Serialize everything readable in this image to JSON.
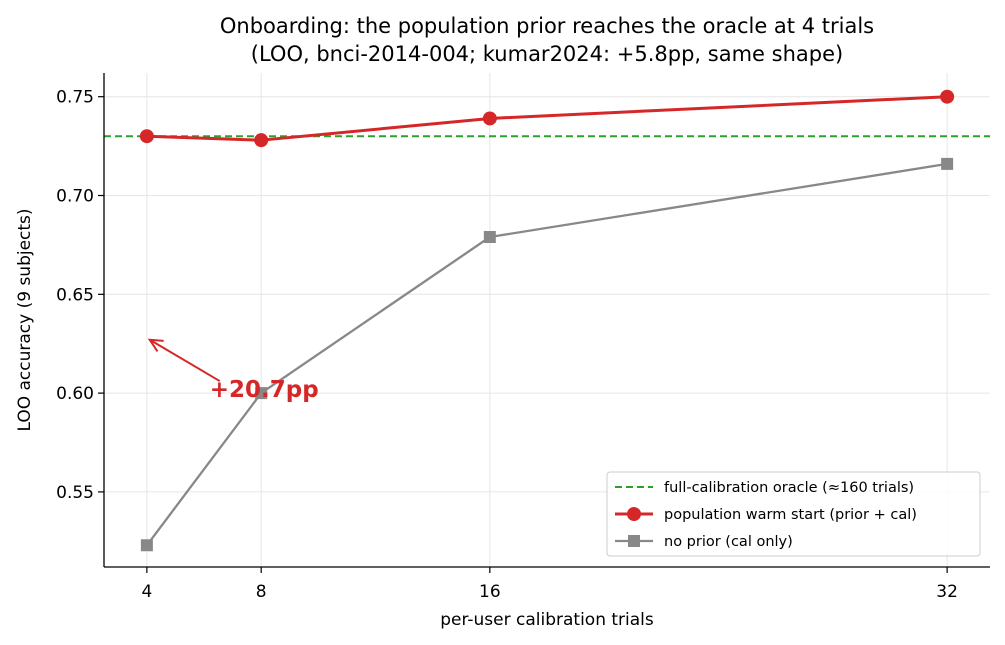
{
  "chart_data": {
    "type": "line",
    "title": "Onboarding: the population prior reaches the oracle at 4 trials",
    "subtitle": "(LOO, bnci-2014-004; kumar2024: +5.8pp, same shape)",
    "xlabel": "per-user calibration trials",
    "ylabel": "LOO accuracy (9 subjects)",
    "x": [
      4,
      8,
      16,
      32
    ],
    "x_tick_labels": [
      "4",
      "8",
      "16",
      "32"
    ],
    "y_ticks": [
      0.55,
      0.6,
      0.65,
      0.7,
      0.75
    ],
    "y_tick_labels": [
      "0.55",
      "0.60",
      "0.65",
      "0.70",
      "0.75"
    ],
    "xlim": [
      2.5,
      33.5
    ],
    "ylim": [
      0.512,
      0.762
    ],
    "grid": true,
    "legend_position": "lower right",
    "series": [
      {
        "name": "population warm start (prior + cal)",
        "values": [
          0.73,
          0.728,
          0.739,
          0.75
        ],
        "color": "#d62728",
        "marker": "circle",
        "style": "solid"
      },
      {
        "name": "no prior (cal only)",
        "values": [
          0.523,
          0.6,
          0.679,
          0.716
        ],
        "color": "#888888",
        "marker": "square",
        "style": "solid"
      }
    ],
    "reference_lines": [
      {
        "name": "full-calibration oracle (≈160 trials)",
        "y": 0.73,
        "color": "#2ca02c",
        "style": "dashed"
      }
    ],
    "annotations": [
      {
        "text": "+20.7pp",
        "color": "#d62728",
        "text_x": 6.2,
        "text_y": 0.598,
        "arrow_to_x": 4.1,
        "arrow_to_y": 0.627
      }
    ]
  }
}
